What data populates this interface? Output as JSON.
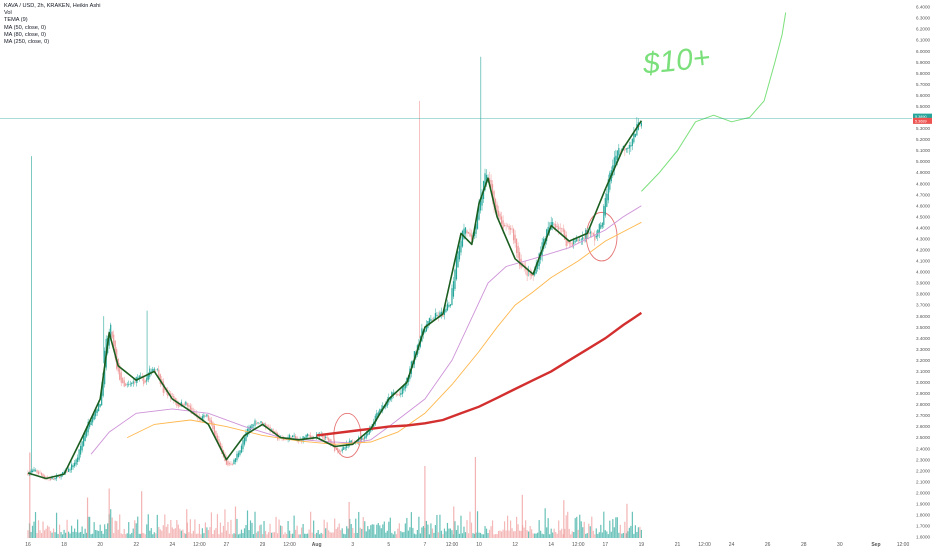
{
  "legend": {
    "symbol_line": "KAVA / USD, 2h, KRAKEN, Heikin Ashi",
    "volume_line": "Vol",
    "tema_line": "TEMA (9)",
    "ma1_line": "MA (50, close, 0)",
    "ma2_line": "MA (80, close, 0)",
    "ma3_line": "MA (250, close, 0)"
  },
  "price_labels": {
    "last_price": "5.3890",
    "countdown": "1:20:35",
    "tema_value": "5.3689"
  },
  "annotation": {
    "text": "$10+",
    "color": "#7be07b"
  },
  "colors": {
    "up": "#26a69a",
    "down": "#ef9a9a",
    "tema": "#1b5e20",
    "ma50": "#ce93d8",
    "ma80": "#ffb74d",
    "ma250": "#d32f2f",
    "projection": "#7be07b",
    "highlight": "#e57373",
    "axis_text": "#555555",
    "price_line": "#26a69a",
    "tema_label": "#ef5350"
  },
  "chart_data": {
    "type": "candlestick",
    "title": "KAVA / USD, 2h, KRAKEN, Heikin Ashi",
    "xlabel": "",
    "ylabel": "",
    "ylim": [
      1.6,
      6.4
    ],
    "y_ticks": [
      "6.4000",
      "6.3000",
      "6.2000",
      "6.1000",
      "6.0000",
      "5.9000",
      "5.8000",
      "5.7000",
      "5.6000",
      "5.5000",
      "5.4000",
      "5.3000",
      "5.2000",
      "5.1000",
      "5.0000",
      "4.9000",
      "4.8000",
      "4.7000",
      "4.6000",
      "4.5000",
      "4.4000",
      "4.3000",
      "4.2000",
      "4.1000",
      "4.0000",
      "3.9000",
      "3.8000",
      "3.7000",
      "3.6000",
      "3.5000",
      "3.4000",
      "3.3000",
      "3.2000",
      "3.1000",
      "3.0000",
      "2.9000",
      "2.8000",
      "2.7000",
      "2.6000",
      "2.5000",
      "2.4000",
      "2.3000",
      "2.2000",
      "2.1000",
      "2.0000",
      "1.9000",
      "1.8000",
      "1.7000",
      "1.6000"
    ],
    "x_ticks": [
      "16",
      "18",
      "20",
      "22",
      "24",
      "12:00",
      "27",
      "29",
      "12:00",
      "Aug",
      "3",
      "5",
      "7",
      "12:00",
      "10",
      "12",
      "14",
      "12:00",
      "17",
      "19",
      "21",
      "12:00",
      "24",
      "26",
      "28",
      "30",
      "Sep",
      "12:00"
    ],
    "x_tick_days": [
      16,
      18,
      20,
      22,
      24,
      25.5,
      27,
      29,
      30.5,
      32,
      34,
      36,
      38,
      39.5,
      41,
      43,
      45,
      46.5,
      48,
      50,
      52,
      53.5,
      55,
      57,
      59,
      61,
      63,
      64.5
    ],
    "x_range_days": [
      16,
      65
    ],
    "grid": false,
    "legend_position": "top-left",
    "price_anchors": [
      [
        16,
        2.18
      ],
      [
        16.4,
        2.2
      ],
      [
        16.9,
        2.14
      ],
      [
        17.4,
        2.12
      ],
      [
        17.8,
        2.16
      ],
      [
        18.2,
        2.2
      ],
      [
        18.7,
        2.3
      ],
      [
        19.2,
        2.58
      ],
      [
        19.6,
        2.72
      ],
      [
        20,
        2.82
      ],
      [
        20.3,
        3.35
      ],
      [
        20.6,
        3.5
      ],
      [
        20.9,
        3.12
      ],
      [
        21.3,
        2.95
      ],
      [
        21.7,
        2.98
      ],
      [
        22.1,
        3.05
      ],
      [
        22.5,
        3.0
      ],
      [
        22.8,
        3.12
      ],
      [
        23.1,
        3.14
      ],
      [
        23.5,
        2.92
      ],
      [
        23.9,
        2.88
      ],
      [
        24.3,
        2.79
      ],
      [
        24.7,
        2.82
      ],
      [
        25.1,
        2.72
      ],
      [
        25.5,
        2.66
      ],
      [
        25.9,
        2.7
      ],
      [
        26.3,
        2.55
      ],
      [
        26.6,
        2.4
      ],
      [
        27,
        2.25
      ],
      [
        27.4,
        2.28
      ],
      [
        27.8,
        2.42
      ],
      [
        28.2,
        2.58
      ],
      [
        28.6,
        2.65
      ],
      [
        29,
        2.63
      ],
      [
        29.4,
        2.58
      ],
      [
        29.8,
        2.5
      ],
      [
        30.2,
        2.48
      ],
      [
        30.6,
        2.52
      ],
      [
        31,
        2.46
      ],
      [
        31.4,
        2.52
      ],
      [
        31.8,
        2.5
      ],
      [
        32.2,
        2.52
      ],
      [
        32.6,
        2.48
      ],
      [
        33,
        2.4
      ],
      [
        33.4,
        2.38
      ],
      [
        33.8,
        2.45
      ],
      [
        34.2,
        2.48
      ],
      [
        34.6,
        2.5
      ],
      [
        35,
        2.6
      ],
      [
        35.4,
        2.75
      ],
      [
        35.8,
        2.8
      ],
      [
        36.2,
        2.9
      ],
      [
        36.6,
        2.88
      ],
      [
        37,
        3.02
      ],
      [
        37.4,
        3.25
      ],
      [
        37.8,
        3.45
      ],
      [
        38.2,
        3.55
      ],
      [
        38.6,
        3.6
      ],
      [
        39,
        3.62
      ],
      [
        39.4,
        3.72
      ],
      [
        39.8,
        4.2
      ],
      [
        40.2,
        4.42
      ],
      [
        40.6,
        4.25
      ],
      [
        41,
        4.6
      ],
      [
        41.4,
        4.92
      ],
      [
        41.7,
        4.72
      ],
      [
        42,
        4.5
      ],
      [
        42.4,
        4.38
      ],
      [
        42.8,
        4.4
      ],
      [
        43.2,
        4.1
      ],
      [
        43.6,
        4.0
      ],
      [
        44,
        3.95
      ],
      [
        44.3,
        4.15
      ],
      [
        44.7,
        4.35
      ],
      [
        45.1,
        4.45
      ],
      [
        45.5,
        4.4
      ],
      [
        45.9,
        4.25
      ],
      [
        46.3,
        4.28
      ],
      [
        46.7,
        4.3
      ],
      [
        47,
        4.38
      ],
      [
        47.4,
        4.3
      ],
      [
        47.8,
        4.45
      ],
      [
        48.2,
        4.85
      ],
      [
        48.6,
        5.1
      ],
      [
        49,
        5.12
      ],
      [
        49.4,
        5.18
      ],
      [
        49.7,
        5.28
      ],
      [
        50,
        5.39
      ]
    ],
    "tema_anchors": [
      [
        16,
        2.18
      ],
      [
        17,
        2.13
      ],
      [
        18,
        2.17
      ],
      [
        19,
        2.5
      ],
      [
        20,
        2.85
      ],
      [
        20.5,
        3.45
      ],
      [
        21,
        3.15
      ],
      [
        22,
        3.02
      ],
      [
        23,
        3.1
      ],
      [
        24,
        2.85
      ],
      [
        25,
        2.74
      ],
      [
        26,
        2.62
      ],
      [
        27,
        2.3
      ],
      [
        28,
        2.52
      ],
      [
        29,
        2.62
      ],
      [
        30,
        2.5
      ],
      [
        31,
        2.48
      ],
      [
        32,
        2.5
      ],
      [
        33,
        2.42
      ],
      [
        34,
        2.44
      ],
      [
        35,
        2.58
      ],
      [
        36,
        2.85
      ],
      [
        37,
        3.0
      ],
      [
        38,
        3.5
      ],
      [
        39,
        3.62
      ],
      [
        40,
        4.35
      ],
      [
        40.6,
        4.25
      ],
      [
        41,
        4.62
      ],
      [
        41.5,
        4.85
      ],
      [
        42,
        4.5
      ],
      [
        43,
        4.12
      ],
      [
        44,
        3.98
      ],
      [
        45,
        4.42
      ],
      [
        46,
        4.28
      ],
      [
        47,
        4.35
      ],
      [
        48,
        4.75
      ],
      [
        49,
        5.12
      ],
      [
        50,
        5.37
      ]
    ],
    "ma50_anchors": [
      [
        19.5,
        2.35
      ],
      [
        20.5,
        2.55
      ],
      [
        22,
        2.72
      ],
      [
        24,
        2.76
      ],
      [
        26,
        2.72
      ],
      [
        28,
        2.6
      ],
      [
        30,
        2.5
      ],
      [
        32,
        2.47
      ],
      [
        34,
        2.45
      ],
      [
        35,
        2.48
      ],
      [
        36,
        2.6
      ],
      [
        38,
        2.85
      ],
      [
        39.5,
        3.2
      ],
      [
        40.5,
        3.55
      ],
      [
        41.5,
        3.9
      ],
      [
        42.5,
        4.05
      ],
      [
        44,
        4.12
      ],
      [
        46,
        4.22
      ],
      [
        48,
        4.38
      ],
      [
        49,
        4.5
      ],
      [
        50,
        4.6
      ]
    ],
    "ma80_anchors": [
      [
        21.5,
        2.5
      ],
      [
        23,
        2.62
      ],
      [
        25,
        2.66
      ],
      [
        27,
        2.6
      ],
      [
        29,
        2.52
      ],
      [
        31,
        2.47
      ],
      [
        33,
        2.44
      ],
      [
        35,
        2.46
      ],
      [
        36.5,
        2.55
      ],
      [
        38,
        2.72
      ],
      [
        39.5,
        2.98
      ],
      [
        41,
        3.28
      ],
      [
        42,
        3.5
      ],
      [
        43,
        3.7
      ],
      [
        44,
        3.82
      ],
      [
        45,
        3.95
      ],
      [
        46.5,
        4.1
      ],
      [
        48,
        4.28
      ],
      [
        50,
        4.45
      ]
    ],
    "ma250_anchors": [
      [
        32,
        2.52
      ],
      [
        34,
        2.56
      ],
      [
        36,
        2.6
      ],
      [
        37,
        2.61
      ],
      [
        38,
        2.63
      ],
      [
        39,
        2.66
      ],
      [
        40,
        2.72
      ],
      [
        41,
        2.78
      ],
      [
        42,
        2.86
      ],
      [
        43,
        2.94
      ],
      [
        44,
        3.02
      ],
      [
        45,
        3.1
      ],
      [
        46,
        3.2
      ],
      [
        47,
        3.3
      ],
      [
        48,
        3.4
      ],
      [
        49,
        3.52
      ],
      [
        50,
        3.63
      ]
    ],
    "projection_path": [
      [
        50,
        4.73
      ],
      [
        51,
        4.9
      ],
      [
        52,
        5.1
      ],
      [
        53,
        5.36
      ],
      [
        54,
        5.42
      ],
      [
        55,
        5.36
      ],
      [
        56,
        5.4
      ],
      [
        56.8,
        5.55
      ],
      [
        57.4,
        5.9
      ],
      [
        57.8,
        6.15
      ],
      [
        58,
        6.35
      ]
    ],
    "highlight_ellipses": [
      {
        "center_day": 33.7,
        "center_price": 2.52,
        "rx_days": 0.75,
        "ry_price": 0.2
      },
      {
        "center_day": 47.8,
        "center_price": 4.32,
        "rx_days": 0.85,
        "ry_price": 0.22
      }
    ],
    "volume_spikes": [
      [
        16.1,
        0.95
      ],
      [
        19.3,
        0.45
      ],
      [
        20.5,
        0.55
      ],
      [
        22.3,
        0.52
      ],
      [
        24.8,
        0.32
      ],
      [
        27.5,
        0.35
      ],
      [
        33.8,
        0.4
      ],
      [
        38,
        0.8
      ],
      [
        39.6,
        0.35
      ],
      [
        40.8,
        0.9
      ],
      [
        43.4,
        0.48
      ],
      [
        45.7,
        0.42
      ],
      [
        49.2,
        0.38
      ]
    ],
    "wick_spikes": [
      [
        16.2,
        5.05
      ],
      [
        20.2,
        3.6
      ],
      [
        22.6,
        3.65
      ],
      [
        37.7,
        5.55
      ],
      [
        41.1,
        5.95
      ]
    ]
  }
}
